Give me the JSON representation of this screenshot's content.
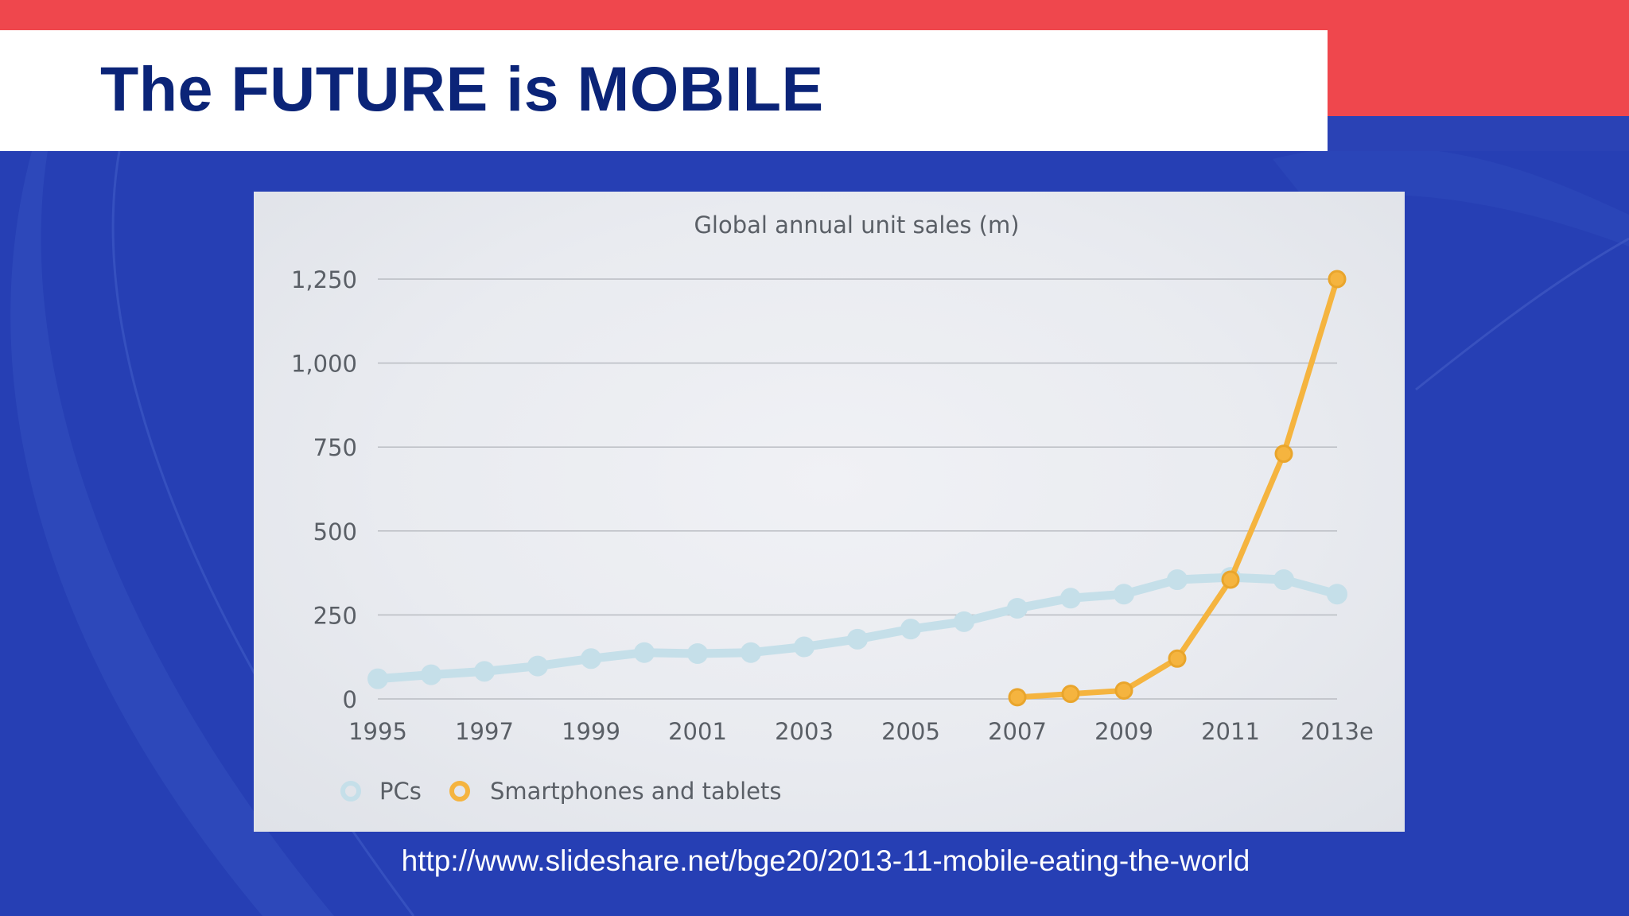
{
  "slide": {
    "title": "The FUTURE is MOBILE",
    "source_url": "http://www.slideshare.net/bge20/2013-11-mobile-eating-the-world"
  },
  "colors": {
    "accent_red": "#ef474d",
    "title_navy": "#0b2478",
    "background_blue": "#263fb4",
    "pcs_series": "#c5dfe9",
    "smartphones_series": "#f5b43f"
  },
  "chart_data": {
    "type": "line",
    "title": "Global annual unit sales (m)",
    "xlabel": "",
    "ylabel": "",
    "x": [
      "1995",
      "1996",
      "1997",
      "1998",
      "1999",
      "2000",
      "2001",
      "2002",
      "2003",
      "2004",
      "2005",
      "2006",
      "2007",
      "2008",
      "2009",
      "2010",
      "2011",
      "2012",
      "2013e"
    ],
    "x_tick_labels": [
      "1995",
      "1997",
      "1999",
      "2001",
      "2003",
      "2005",
      "2007",
      "2009",
      "2011",
      "2013e"
    ],
    "y_ticks": [
      0,
      250,
      500,
      750,
      1000,
      1250
    ],
    "y_tick_labels": [
      "0",
      "250",
      "500",
      "750",
      "1,000",
      "1,250"
    ],
    "ylim": [
      0,
      1250
    ],
    "grid": true,
    "legend_position": "bottom-left",
    "series": [
      {
        "name": "PCs",
        "values": [
          60,
          72,
          82,
          98,
          120,
          138,
          135,
          138,
          155,
          178,
          208,
          230,
          270,
          300,
          312,
          355,
          362,
          355,
          312
        ]
      },
      {
        "name": "Smartphones and tablets",
        "values": [
          null,
          null,
          null,
          null,
          null,
          null,
          null,
          null,
          null,
          null,
          null,
          null,
          5,
          15,
          25,
          120,
          355,
          730,
          1250
        ]
      }
    ]
  }
}
